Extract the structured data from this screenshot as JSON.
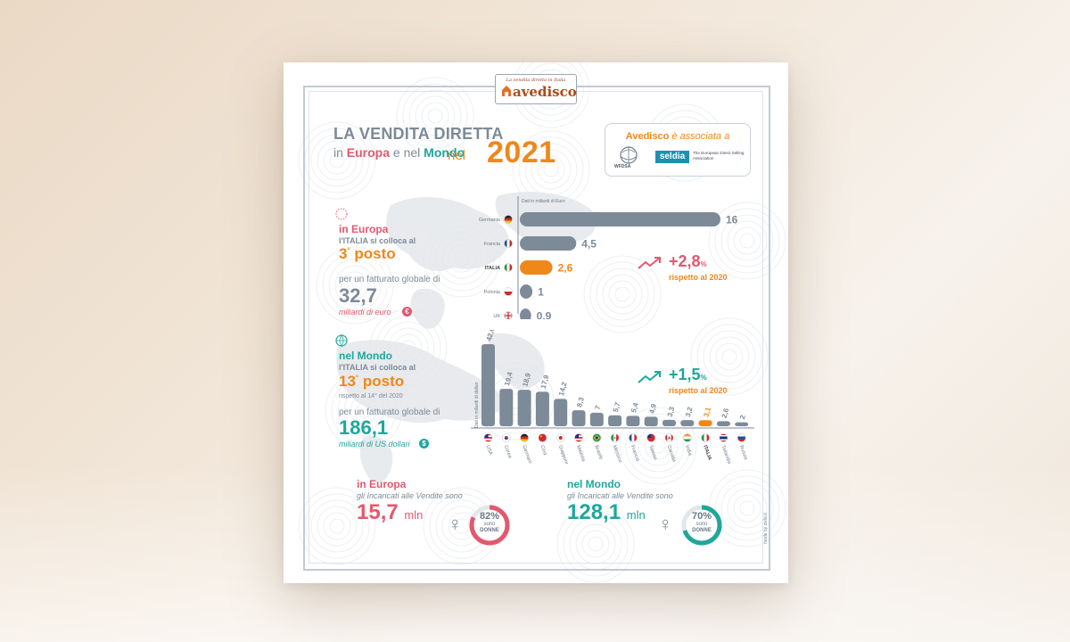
{
  "header": {
    "logo_tagline": "La vendita diretta in Italia",
    "logo_word": "avedisco",
    "title_line1": "LA VENDITA DIRETTA",
    "title_in": "in",
    "title_europa": "Europa",
    "title_e_nel": "e nel",
    "title_mondo": "Mondo",
    "title_nel": "nel",
    "year": "2021"
  },
  "association": {
    "brand": "Avedisco",
    "text": "è associata a",
    "wfdsa": "WFDSA",
    "seldia": "seldia",
    "seldia_sub": "The European Direct Selling Association"
  },
  "europe": {
    "heading": "in Europa",
    "line1": "l'ITALIA si colloca al",
    "rank": "3",
    "rank_suffix": "°",
    "rank_word": "posto",
    "revenue_intro": "per un fatturato globale di",
    "revenue": "32,7",
    "revenue_unit": "miliardi di euro",
    "currency_symbol": "€",
    "growth": "+2,8",
    "growth_unit": "%",
    "growth_note": "rispetto al 2020"
  },
  "world": {
    "heading": "nel Mondo",
    "line1": "l'ITALIA si colloca al",
    "rank": "13",
    "rank_suffix": "°",
    "rank_word": "posto",
    "rank_note": "rispetto al 14° del 2020",
    "revenue_intro": "per un fatturato globale di",
    "revenue": "186,1",
    "revenue_unit": "miliardi di US dollari",
    "currency_symbol": "$",
    "growth": "+1,5",
    "growth_unit": "%",
    "growth_note": "rispetto al 2020"
  },
  "sellers": {
    "europe_heading": "in Europa",
    "europe_sub": "gli Incaricati alle Vendite sono",
    "europe_value": "15,7",
    "europe_unit": "mln",
    "europe_women_pct": 82,
    "europe_women_label": "82%",
    "world_heading": "nel Mondo",
    "world_sub": "gli Incaricati alle Vendite sono",
    "world_value": "128,1",
    "world_unit": "mln",
    "world_women_pct": 70,
    "world_women_label": "70%",
    "sono": "sono",
    "donne": "DONNE",
    "female_symbol": "♀"
  },
  "credit": "made by ziele.it",
  "colors": {
    "pink": "#e3586e",
    "teal": "#1fa79b",
    "orange": "#f0871a",
    "bar": "#7d8a98",
    "highlight": "#f0871a"
  },
  "chart_data": [
    {
      "type": "bar",
      "orientation": "horizontal",
      "note": "Dati in miliardi di Euro",
      "categories": [
        "Germania",
        "Francia",
        "ITALIA",
        "Polonia",
        "UK"
      ],
      "values": [
        16,
        4.5,
        2.6,
        1,
        0.9
      ],
      "value_labels": [
        "16",
        "4,5",
        "2,6",
        "1",
        "0,9"
      ],
      "flags": [
        "de",
        "fr",
        "it",
        "pl",
        "uk"
      ],
      "highlight": "ITALIA"
    },
    {
      "type": "bar",
      "orientation": "vertical",
      "note": "Dati in miliardi di dollari",
      "categories": [
        "USA",
        "Corea",
        "Germania",
        "Cina",
        "Giappone",
        "Malesia",
        "Brasile",
        "Messico",
        "Francia",
        "Taiwan",
        "Canada",
        "India",
        "ITALIA",
        "Tailandia",
        "Russia"
      ],
      "values": [
        42.6,
        19.4,
        18.9,
        17.9,
        14.2,
        8.3,
        7,
        5.7,
        5.4,
        4.9,
        3.3,
        3.2,
        3.1,
        2.6,
        2
      ],
      "value_labels": [
        "42,6",
        "19,4",
        "18,9",
        "17,9",
        "14,2",
        "8,3",
        "7",
        "5,7",
        "5,4",
        "4,9",
        "3,3",
        "3,2",
        "3,1",
        "2,6",
        "2"
      ],
      "flags": [
        "us",
        "kr",
        "de",
        "cn",
        "jp",
        "my",
        "br",
        "mx",
        "fr",
        "tw",
        "ca",
        "in",
        "it",
        "th",
        "ru"
      ],
      "highlight": "ITALIA"
    }
  ]
}
